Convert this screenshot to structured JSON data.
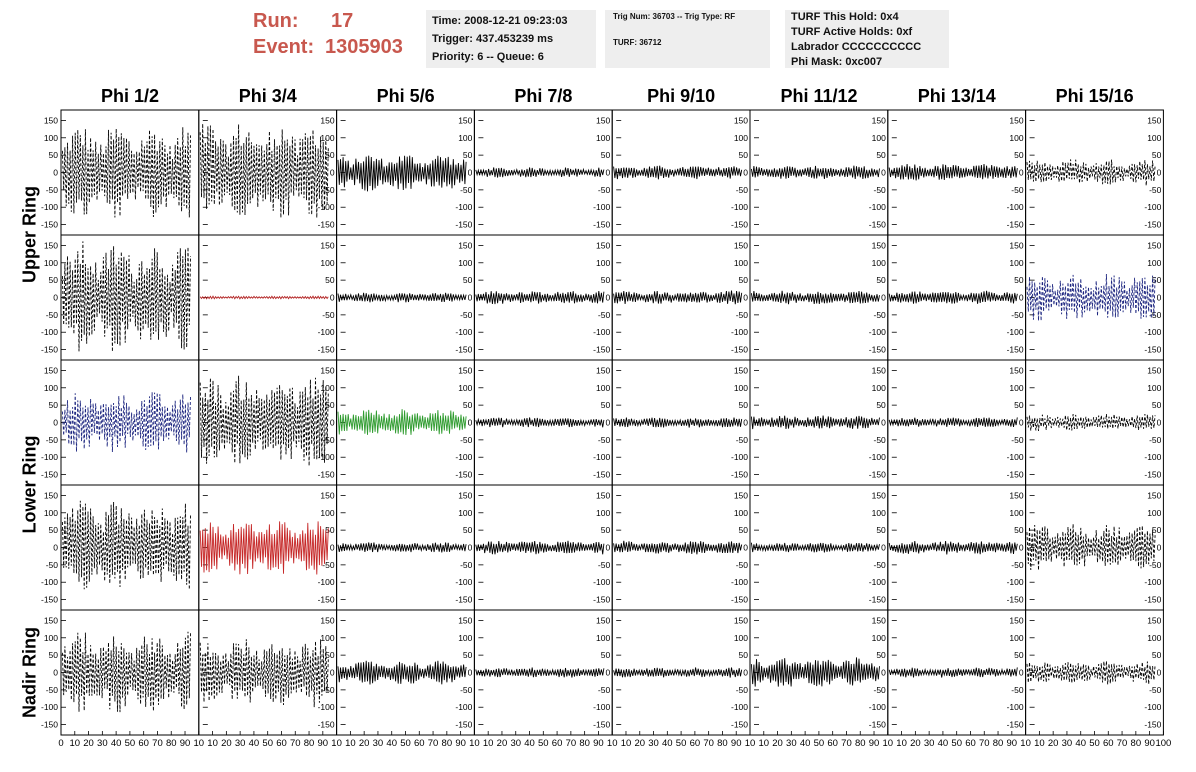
{
  "header": {
    "run_label": "Run:",
    "run_value": "17",
    "event_label": "Event:",
    "event_value": "1305903",
    "time": "Time: 2008-12-21 09:23:03",
    "trigger": "Trigger: 437.453239 ms",
    "priority": "Priority: 6 -- Queue: 6",
    "trig_num": "Trig Num: 36703 -- Trig Type: RF",
    "turf": "TURF: 36712",
    "turf_this_hold": "TURF This Hold: 0x4",
    "turf_active_holds": "TURF Active Holds: 0xf",
    "labrador": "Labrador CCCCCCCCCC",
    "phi_mask": "Phi Mask: 0xc007",
    "accent_color": "#c8584e"
  },
  "chart_data": {
    "type": "line",
    "title": "",
    "columns": [
      "Phi 1/2",
      "Phi 3/4",
      "Phi 5/6",
      "Phi 7/8",
      "Phi 9/10",
      "Phi 11/12",
      "Phi 13/14",
      "Phi 15/16"
    ],
    "ring_labels": [
      {
        "name": "Upper Ring",
        "rows": [
          0,
          1
        ]
      },
      {
        "name": "Lower Ring",
        "rows": [
          2,
          3
        ]
      },
      {
        "name": "Nadir Ring",
        "rows": [
          4
        ]
      }
    ],
    "ylim": [
      -180,
      180
    ],
    "y_ticks": [
      -150,
      -100,
      -50,
      0,
      50,
      100,
      150
    ],
    "xlim": [
      0,
      100
    ],
    "x_ticks": [
      0,
      10,
      20,
      30,
      40,
      50,
      60,
      70,
      80,
      90,
      100
    ],
    "x_tick_labels_first": [
      "0",
      "10",
      "20",
      "30",
      "40",
      "50",
      "60",
      "70",
      "80",
      "90",
      "10"
    ],
    "x_tick_labels": [
      "10",
      "20",
      "30",
      "40",
      "50",
      "60",
      "70",
      "80",
      "90",
      "10"
    ],
    "x_tick_labels_last": [
      "10",
      "20",
      "30",
      "40",
      "50",
      "60",
      "70",
      "80",
      "90",
      "100"
    ],
    "panels": [
      [
        {
          "amp": 140,
          "color": "#000000",
          "style": "dashed"
        },
        {
          "amp": 150,
          "color": "#000000",
          "style": "dashed"
        },
        {
          "amp": 55,
          "color": "#000000",
          "style": "solid"
        },
        {
          "amp": 15,
          "color": "#000000",
          "style": "solid"
        },
        {
          "amp": 20,
          "color": "#000000",
          "style": "solid"
        },
        {
          "amp": 20,
          "color": "#000000",
          "style": "solid"
        },
        {
          "amp": 25,
          "color": "#000000",
          "style": "solid"
        },
        {
          "amp": 40,
          "color": "#000000",
          "style": "dashed"
        }
      ],
      [
        {
          "amp": 165,
          "color": "#000000",
          "style": "dashed"
        },
        {
          "amp": 4,
          "color": "#b22222",
          "style": "solid"
        },
        {
          "amp": 15,
          "color": "#000000",
          "style": "solid"
        },
        {
          "amp": 20,
          "color": "#000000",
          "style": "solid"
        },
        {
          "amp": 20,
          "color": "#000000",
          "style": "solid"
        },
        {
          "amp": 20,
          "color": "#000000",
          "style": "solid"
        },
        {
          "amp": 20,
          "color": "#000000",
          "style": "solid"
        },
        {
          "amp": 70,
          "color": "#1a237e",
          "style": "dashed"
        }
      ],
      [
        {
          "amp": 90,
          "color": "#1a237e",
          "style": "dashed"
        },
        {
          "amp": 140,
          "color": "#000000",
          "style": "dashed"
        },
        {
          "amp": 40,
          "color": "#2e9b2e",
          "style": "solid"
        },
        {
          "amp": 15,
          "color": "#000000",
          "style": "solid"
        },
        {
          "amp": 15,
          "color": "#000000",
          "style": "solid"
        },
        {
          "amp": 20,
          "color": "#000000",
          "style": "solid"
        },
        {
          "amp": 15,
          "color": "#000000",
          "style": "solid"
        },
        {
          "amp": 25,
          "color": "#000000",
          "style": "dashed"
        }
      ],
      [
        {
          "amp": 135,
          "color": "#000000",
          "style": "dashed"
        },
        {
          "amp": 80,
          "color": "#c62828",
          "style": "solid"
        },
        {
          "amp": 15,
          "color": "#000000",
          "style": "solid"
        },
        {
          "amp": 20,
          "color": "#000000",
          "style": "solid"
        },
        {
          "amp": 20,
          "color": "#000000",
          "style": "solid"
        },
        {
          "amp": 15,
          "color": "#000000",
          "style": "solid"
        },
        {
          "amp": 20,
          "color": "#000000",
          "style": "solid"
        },
        {
          "amp": 70,
          "color": "#000000",
          "style": "dashed"
        }
      ],
      [
        {
          "amp": 120,
          "color": "#000000",
          "style": "dashed"
        },
        {
          "amp": 100,
          "color": "#000000",
          "style": "dashed"
        },
        {
          "amp": 35,
          "color": "#000000",
          "style": "solid"
        },
        {
          "amp": 15,
          "color": "#000000",
          "style": "solid"
        },
        {
          "amp": 15,
          "color": "#000000",
          "style": "solid"
        },
        {
          "amp": 45,
          "color": "#000000",
          "style": "solid"
        },
        {
          "amp": 15,
          "color": "#000000",
          "style": "solid"
        },
        {
          "amp": 35,
          "color": "#000000",
          "style": "dashed"
        }
      ]
    ]
  }
}
